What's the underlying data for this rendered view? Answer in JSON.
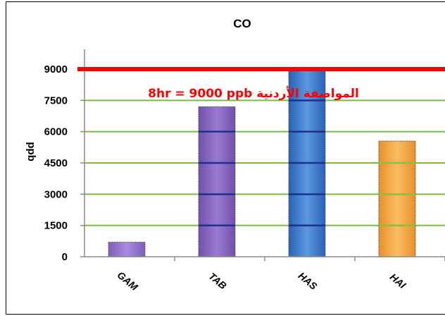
{
  "chart_data": {
    "type": "bar",
    "title": "CO",
    "categories": [
      "GAM",
      "TAB",
      "HAS",
      "HAI"
    ],
    "values": [
      700,
      7200,
      8950,
      5550
    ],
    "bar_colors": [
      "#9e7fd6",
      "#8d69c2",
      "#3d7fd0",
      "#f5a23e"
    ],
    "ylim": [
      0,
      9500
    ],
    "yticks": [
      0,
      1500,
      3000,
      4500,
      6000,
      7500,
      9000
    ],
    "ytick_labels": [
      "0",
      "1500",
      "3000",
      "4500",
      "6000",
      "7500",
      "9000"
    ],
    "ylabel": "ppb",
    "grid": true,
    "grid_color": "#7dbb3c",
    "reference_line": {
      "value": 9000,
      "label": "8hr = 9000 ppb المواصفة الأردنية",
      "color": "#ff0000"
    }
  }
}
